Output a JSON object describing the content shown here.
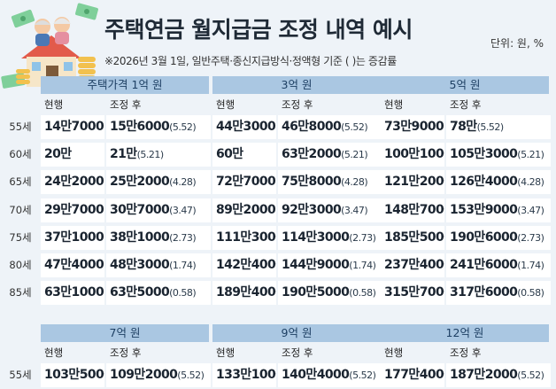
{
  "header": {
    "title": "주택연금 월지급금 조정 내역 예시",
    "unit": "단위: 원, %",
    "note": "※2026년 3월 1일, 일반주택·종신지급방식·정액형 기준  ( )는 증감률"
  },
  "colors": {
    "background": "#eef3f8",
    "group_header": "#aac7e2",
    "cell": "#ffffff"
  },
  "column_labels": {
    "current": "현행",
    "after": "조정 후"
  },
  "top_section": {
    "row_labels": [
      "55세",
      "60세",
      "65세",
      "70세",
      "75세",
      "80세",
      "85세"
    ],
    "groups": [
      {
        "label": "주택가격 1억 원",
        "rows": [
          {
            "current": "14만7000",
            "after": "15만6000",
            "pct": "(5.52)"
          },
          {
            "current": "20만",
            "after": "21만",
            "pct": "(5.21)"
          },
          {
            "current": "24만2000",
            "after": "25만2000",
            "pct": "(4.28)"
          },
          {
            "current": "29만7000",
            "after": "30만7000",
            "pct": "(3.47)"
          },
          {
            "current": "37만1000",
            "after": "38만1000",
            "pct": "(2.73)"
          },
          {
            "current": "47만4000",
            "after": "48만3000",
            "pct": "(1.74)"
          },
          {
            "current": "63만1000",
            "after": "63만5000",
            "pct": "(0.58)"
          }
        ]
      },
      {
        "label": "3억 원",
        "rows": [
          {
            "current": "44만3000",
            "after": "46만8000",
            "pct": "(5.52)"
          },
          {
            "current": "60만",
            "after": "63만2000",
            "pct": "(5.21)"
          },
          {
            "current": "72만7000",
            "after": "75만8000",
            "pct": "(4.28)"
          },
          {
            "current": "89만2000",
            "after": "92만3000",
            "pct": "(3.47)"
          },
          {
            "current": "111만3000",
            "after": "114만3000",
            "pct": "(2.73)"
          },
          {
            "current": "142만4000",
            "after": "144만9000",
            "pct": "(1.74)"
          },
          {
            "current": "189만4000",
            "after": "190만5000",
            "pct": "(0.58)"
          }
        ]
      },
      {
        "label": "5억 원",
        "rows": [
          {
            "current": "73만9000",
            "after": "78만",
            "pct": "(5.52)"
          },
          {
            "current": "100만1000",
            "after": "105만3000",
            "pct": "(5.21)"
          },
          {
            "current": "121만2000",
            "after": "126만4000",
            "pct": "(4.28)"
          },
          {
            "current": "148만7000",
            "after": "153만9000",
            "pct": "(3.47)"
          },
          {
            "current": "185만5000",
            "after": "190만6000",
            "pct": "(2.73)"
          },
          {
            "current": "237만4000",
            "after": "241만6000",
            "pct": "(1.74)"
          },
          {
            "current": "315만7000",
            "after": "317만6000",
            "pct": "(0.58)"
          }
        ]
      }
    ]
  },
  "bottom_section": {
    "row_labels": [
      "55세"
    ],
    "groups": [
      {
        "label": "7억 원",
        "rows": [
          {
            "current": "103만5000",
            "after": "109만2000",
            "pct": "(5.52)"
          }
        ]
      },
      {
        "label": "9억 원",
        "rows": [
          {
            "current": "133만1000",
            "after": "140만4000",
            "pct": "(5.52)"
          }
        ]
      },
      {
        "label": "12억 원",
        "rows": [
          {
            "current": "177만4000",
            "after": "187만2000",
            "pct": "(5.52)"
          }
        ]
      }
    ]
  }
}
